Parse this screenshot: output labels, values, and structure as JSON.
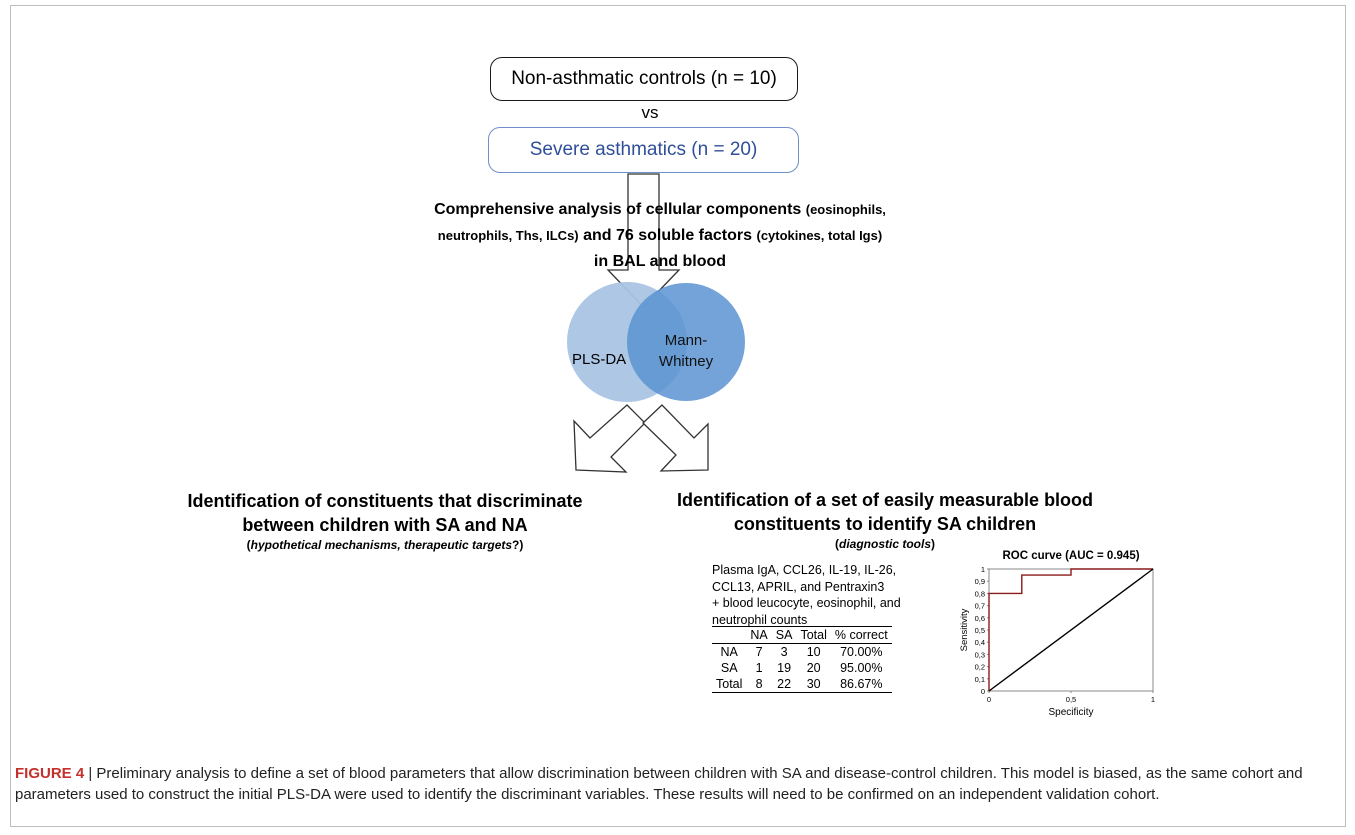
{
  "flow": {
    "controls_label": "Non-asthmatic controls (n = 10)",
    "vs_label": "vs",
    "severe_label": "Severe asthmatics (n = 20)",
    "analysis_line1_a": "Comprehensive analysis of cellular components",
    "analysis_line1_b": "(eosinophils,",
    "analysis_line2_a": "neutrophils, Ths, ILCs)",
    "analysis_line2_b": "and 76 soluble factors",
    "analysis_line2_c": "(cytokines, total Igs)",
    "analysis_line3": "in BAL and blood",
    "venn_left": "PLS-DA",
    "venn_right_1": "Mann-",
    "venn_right_2": "Whitney",
    "colors": {
      "venn_left": "#a9c4e4",
      "venn_right": "#5b93d1",
      "severe_border": "#6f8fc8",
      "severe_text": "#2f4f9a",
      "roc_line": "#8b1a1a",
      "caption_label": "#c4302b"
    }
  },
  "left_outcome": {
    "line1": "Identification of constituents that discriminate",
    "line2": "between children with SA and NA",
    "note_open": "(",
    "note_italic": "hypothetical mechanisms, therapeutic targets",
    "note_close": "?)"
  },
  "right_outcome": {
    "line1": "Identification of a set of easily measurable blood",
    "line2": "constituents to identify SA children",
    "note_open": "(",
    "note_italic": "diagnostic tools",
    "note_close": ")",
    "blood_params": [
      "Plasma IgA, CCL26, IL-19, IL-26,",
      "CCL13, APRIL, and Pentraxin3",
      "+ blood leucocyte, eosinophil, and",
      "neutrophil counts"
    ],
    "table": {
      "headers": [
        "",
        "NA",
        "SA",
        "Total",
        "% correct"
      ],
      "rows": [
        [
          "NA",
          "7",
          "3",
          "10",
          "70.00%"
        ],
        [
          "SA",
          "1",
          "19",
          "20",
          "95.00%"
        ],
        [
          "Total",
          "8",
          "22",
          "30",
          "86.67%"
        ]
      ]
    }
  },
  "chart_data": {
    "type": "line",
    "title": "ROC curve (AUC = 0.945)",
    "xlabel": "Specificity",
    "ylabel": "Sensitivity",
    "xlim": [
      0,
      1
    ],
    "ylim": [
      0,
      1
    ],
    "x_tick_labels": [
      "0",
      "0,5",
      "1"
    ],
    "y_tick_labels": [
      "0",
      "0,1",
      "0,2",
      "0,3",
      "0,4",
      "0,5",
      "0,6",
      "0,7",
      "0,8",
      "0,9",
      "1"
    ],
    "series": [
      {
        "x": [
          0,
          0,
          0.2,
          0.2,
          0.5,
          0.5,
          1
        ],
        "y": [
          0,
          0.8,
          0.8,
          0.95,
          0.95,
          1,
          1
        ]
      },
      {
        "x": [
          0,
          1
        ],
        "y": [
          0,
          1
        ]
      }
    ]
  },
  "caption": {
    "label": "FIGURE 4",
    "separator": " | ",
    "text": "Preliminary analysis to define a set of blood parameters that allow discrimination between children with SA and disease-control children. This model is biased, as the same cohort and parameters used to construct the initial PLS-DA were used to identify the discriminant variables. These results will need to be confirmed on an independent validation cohort."
  }
}
